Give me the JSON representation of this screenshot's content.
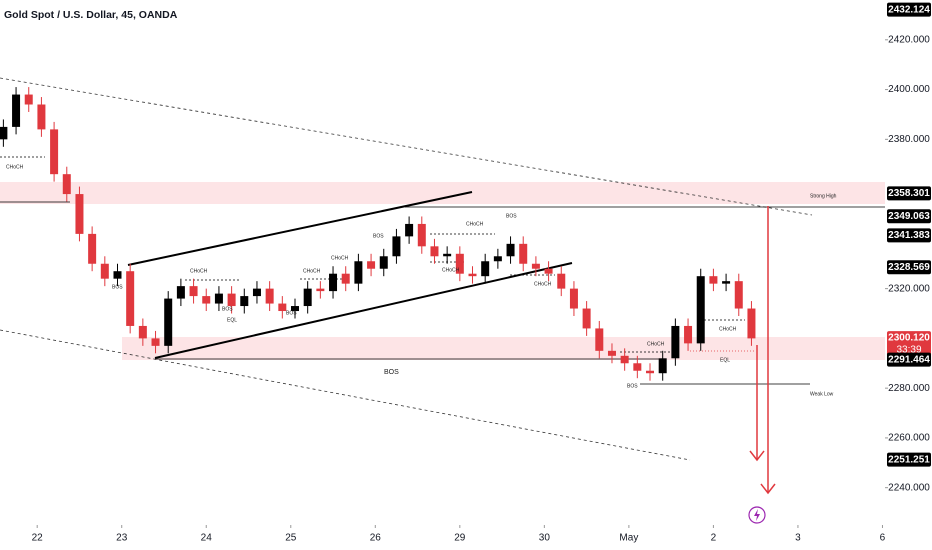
{
  "chart_data": {
    "type": "candlestick",
    "title": "Gold Spot / U.S. Dollar, 45, OANDA",
    "up_color": "#000000",
    "down_color": "#e0383e",
    "x": [
      -0.4,
      -0.25,
      -0.1,
      0.05,
      0.2,
      0.35,
      0.5,
      0.65,
      0.8,
      0.95,
      1.1,
      1.25,
      1.4,
      1.55,
      1.7,
      1.85,
      2,
      2.15,
      2.3,
      2.45,
      2.6,
      2.75,
      2.9,
      3.05,
      3.2,
      3.35,
      3.5,
      3.65,
      3.8,
      3.95,
      4.1,
      4.25,
      4.4,
      4.55,
      4.7,
      4.85,
      5,
      5.15,
      5.3,
      5.45,
      5.6,
      5.75,
      5.9,
      6.05,
      6.2,
      6.35,
      6.5,
      6.65,
      6.8,
      6.95,
      7.1,
      7.25,
      7.4,
      7.55,
      7.7,
      7.85,
      8,
      8.15,
      8.3,
      8.45
    ],
    "open": [
      2380,
      2385,
      2398,
      2394,
      2384,
      2366,
      2358,
      2342,
      2330,
      2324,
      2327,
      2305,
      2300,
      2297,
      2316,
      2321,
      2317,
      2314,
      2318,
      2313,
      2317,
      2320,
      2314,
      2311,
      2313,
      2320,
      2319,
      2326,
      2322,
      2331,
      2328,
      2333,
      2341,
      2346,
      2337,
      2333,
      2334,
      2326,
      2325,
      2331,
      2333,
      2338,
      2330,
      2328,
      2326,
      2320,
      2312,
      2304,
      2295,
      2293,
      2290,
      2287,
      2286,
      2292,
      2305,
      2298,
      2325,
      2322,
      2323,
      2312
    ],
    "high": [
      2388,
      2401,
      2401,
      2397,
      2387,
      2369,
      2361,
      2345,
      2333,
      2330,
      2330,
      2308,
      2303,
      2319,
      2324,
      2324,
      2320,
      2321,
      2321,
      2320,
      2323,
      2323,
      2317,
      2316,
      2323,
      2323,
      2329,
      2329,
      2334,
      2334,
      2336,
      2344,
      2349,
      2349,
      2340,
      2337,
      2337,
      2329,
      2334,
      2336,
      2341,
      2341,
      2333,
      2331,
      2329,
      2323,
      2315,
      2307,
      2298,
      2296,
      2293,
      2290,
      2295,
      2308,
      2308,
      2328,
      2328,
      2326,
      2326,
      2315
    ],
    "low": [
      2377,
      2382,
      2391,
      2381,
      2363,
      2355,
      2339,
      2327,
      2321,
      2321,
      2302,
      2297,
      2294,
      2294,
      2313,
      2314,
      2311,
      2311,
      2310,
      2310,
      2314,
      2311,
      2308,
      2308,
      2310,
      2316,
      2316,
      2319,
      2319,
      2325,
      2325,
      2330,
      2338,
      2334,
      2330,
      2330,
      2323,
      2322,
      2322,
      2328,
      2330,
      2327,
      2325,
      2323,
      2317,
      2309,
      2301,
      2292,
      2290,
      2287,
      2284,
      2283,
      2283,
      2289,
      2295,
      2295,
      2319,
      2319,
      2309,
      2297
    ],
    "close": [
      2385,
      2398,
      2394,
      2384,
      2366,
      2358,
      2342,
      2330,
      2324,
      2327,
      2305,
      2300,
      2297,
      2316,
      2321,
      2317,
      2314,
      2318,
      2313,
      2317,
      2320,
      2314,
      2311,
      2313,
      2320,
      2319,
      2326,
      2322,
      2331,
      2328,
      2333,
      2341,
      2346,
      2337,
      2333,
      2334,
      2326,
      2325,
      2331,
      2333,
      2338,
      2330,
      2328,
      2326,
      2320,
      2312,
      2304,
      2295,
      2293,
      2290,
      2287,
      2286,
      2292,
      2305,
      2298,
      2325,
      2322,
      2323,
      2312,
      2300
    ],
    "xlim": [
      -0.44,
      10.03
    ],
    "xticks": [
      {
        "value": 0,
        "label": "22"
      },
      {
        "value": 1,
        "label": "23"
      },
      {
        "value": 2,
        "label": "24"
      },
      {
        "value": 3,
        "label": "25"
      },
      {
        "value": 4,
        "label": "26"
      },
      {
        "value": 5,
        "label": "29"
      },
      {
        "value": 6,
        "label": "30"
      },
      {
        "value": 7,
        "label": "May"
      },
      {
        "value": 8,
        "label": "2"
      },
      {
        "value": 9,
        "label": "3"
      },
      {
        "value": 10,
        "label": "6"
      }
    ],
    "ylim": [
      2225,
      2436
    ],
    "yticks": [
      {
        "value": 2240,
        "label": "2240.000"
      },
      {
        "value": 2260,
        "label": "2260.000"
      },
      {
        "value": 2280,
        "label": "2280.000"
      },
      {
        "value": 2320,
        "label": "2320.000"
      },
      {
        "value": 2380,
        "label": "2380.000"
      },
      {
        "value": 2400,
        "label": "2400.000"
      },
      {
        "value": 2420,
        "label": "2420.000"
      }
    ],
    "price_labels": [
      2432.124,
      2358.301,
      2349.063,
      2341.383,
      2328.569,
      {
        "value": 2300.12,
        "label": "2300.120"
      },
      2291.464,
      2251.251
    ],
    "countdown": "33:39",
    "annotations": [
      "CHoCH",
      "BOS",
      "CHoCH",
      "BOS",
      "EQL",
      "BOS",
      "CHoCH",
      "CHoCH",
      "BOS",
      "CHoCH",
      "BOS",
      "CHoCH",
      "CHoCH",
      "BOS",
      "CHoCH",
      "BOS",
      "CHoCH",
      "EQL",
      "Strong High",
      "Weak Low"
    ]
  }
}
